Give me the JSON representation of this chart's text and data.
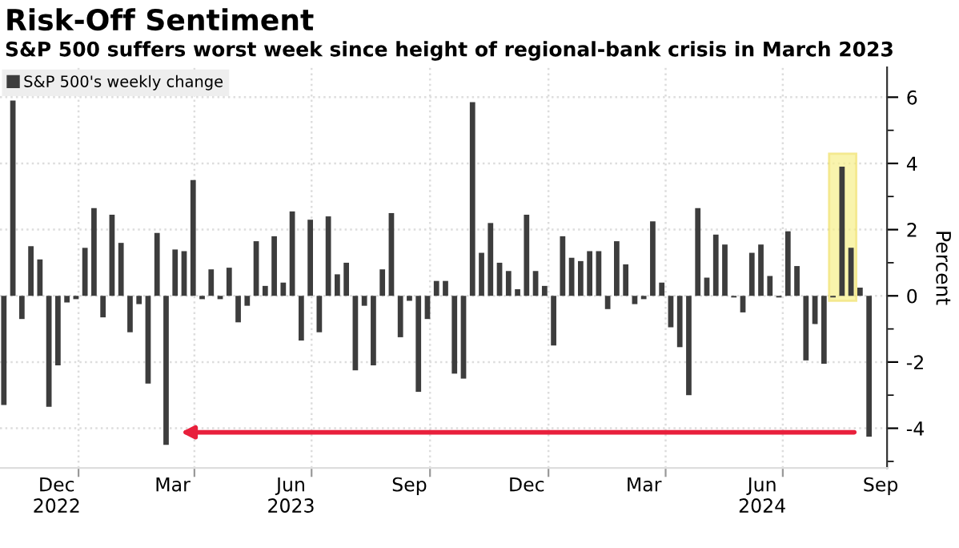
{
  "chart_data": {
    "type": "bar",
    "title": "Risk-Off Sentiment",
    "subtitle": "S&P 500 suffers worst week since height of regional-bank crisis in March 2023",
    "ylabel": "Percent",
    "x": [
      "2022-11-04",
      "2022-11-11",
      "2022-11-18",
      "2022-11-25",
      "2022-12-02",
      "2022-12-09",
      "2022-12-16",
      "2022-12-23",
      "2022-12-30",
      "2023-01-06",
      "2023-01-13",
      "2023-01-20",
      "2023-01-27",
      "2023-02-03",
      "2023-02-10",
      "2023-02-17",
      "2023-02-24",
      "2023-03-03",
      "2023-03-10",
      "2023-03-17",
      "2023-03-24",
      "2023-03-31",
      "2023-04-07",
      "2023-04-14",
      "2023-04-21",
      "2023-04-28",
      "2023-05-05",
      "2023-05-12",
      "2023-05-19",
      "2023-05-26",
      "2023-06-02",
      "2023-06-09",
      "2023-06-16",
      "2023-06-23",
      "2023-06-30",
      "2023-07-07",
      "2023-07-14",
      "2023-07-21",
      "2023-07-28",
      "2023-08-04",
      "2023-08-11",
      "2023-08-18",
      "2023-08-25",
      "2023-09-01",
      "2023-09-08",
      "2023-09-15",
      "2023-09-22",
      "2023-09-29",
      "2023-10-06",
      "2023-10-13",
      "2023-10-20",
      "2023-10-27",
      "2023-11-03",
      "2023-11-10",
      "2023-11-17",
      "2023-11-24",
      "2023-12-01",
      "2023-12-08",
      "2023-12-15",
      "2023-12-22",
      "2023-12-29",
      "2024-01-05",
      "2024-01-12",
      "2024-01-19",
      "2024-01-26",
      "2024-02-02",
      "2024-02-09",
      "2024-02-16",
      "2024-02-23",
      "2024-03-01",
      "2024-03-08",
      "2024-03-15",
      "2024-03-22",
      "2024-03-29",
      "2024-04-05",
      "2024-04-12",
      "2024-04-19",
      "2024-04-26",
      "2024-05-03",
      "2024-05-10",
      "2024-05-17",
      "2024-05-24",
      "2024-05-31",
      "2024-06-07",
      "2024-06-14",
      "2024-06-21",
      "2024-06-28",
      "2024-07-05",
      "2024-07-12",
      "2024-07-19",
      "2024-07-26",
      "2024-08-02",
      "2024-08-09",
      "2024-08-16",
      "2024-08-23",
      "2024-08-30",
      "2024-09-06"
    ],
    "series": [
      {
        "name": "S&P 500's weekly change",
        "color": "#3d3d3d",
        "values": [
          -3.3,
          5.9,
          -0.7,
          1.5,
          1.1,
          -3.35,
          -2.1,
          -0.2,
          -0.1,
          1.45,
          2.65,
          -0.65,
          2.45,
          1.6,
          -1.1,
          -0.25,
          -2.65,
          1.9,
          -4.5,
          1.4,
          1.35,
          3.5,
          -0.1,
          0.8,
          -0.1,
          0.85,
          -0.8,
          -0.3,
          1.65,
          0.3,
          1.8,
          0.4,
          2.55,
          -1.35,
          2.3,
          -1.1,
          2.4,
          0.65,
          1.0,
          -2.25,
          -0.3,
          -2.1,
          0.8,
          2.5,
          -1.25,
          -0.15,
          -2.9,
          -0.7,
          0.45,
          0.45,
          -2.35,
          -2.5,
          5.85,
          1.3,
          2.2,
          1.0,
          0.75,
          0.2,
          2.45,
          0.75,
          0.3,
          -1.5,
          1.8,
          1.15,
          1.05,
          1.35,
          1.35,
          -0.4,
          1.65,
          0.95,
          -0.25,
          -0.1,
          2.25,
          0.4,
          -0.95,
          -1.55,
          -3.0,
          2.65,
          0.55,
          1.85,
          1.55,
          -0.05,
          -0.5,
          1.3,
          1.55,
          0.6,
          -0.05,
          1.95,
          0.9,
          -1.95,
          -0.85,
          -2.05,
          -0.05,
          3.9,
          1.45,
          0.25,
          -4.25
        ]
      }
    ],
    "xlim": [
      "2022-11-01",
      "2024-09-20"
    ],
    "xticks": [
      {
        "value": "2022-12-15",
        "label": "Dec\n2022"
      },
      {
        "value": "2023-01-01",
        "label": null
      },
      {
        "value": "2023-03-15",
        "label": "Mar"
      },
      {
        "value": "2023-04-01",
        "label": null
      },
      {
        "value": "2023-06-15",
        "label": "Jun\n2023"
      },
      {
        "value": "2023-07-01",
        "label": null
      },
      {
        "value": "2023-09-15",
        "label": "Sep"
      },
      {
        "value": "2023-10-01",
        "label": null
      },
      {
        "value": "2023-12-15",
        "label": "Dec"
      },
      {
        "value": "2024-01-01",
        "label": null
      },
      {
        "value": "2024-03-15",
        "label": "Mar"
      },
      {
        "value": "2024-04-01",
        "label": null
      },
      {
        "value": "2024-06-15",
        "label": "Jun\n2024"
      },
      {
        "value": "2024-07-01",
        "label": null
      },
      {
        "value": "2024-09-15",
        "label": "Sep"
      }
    ],
    "ylim": [
      -5.2,
      6.9
    ],
    "yticks": [
      -4,
      {
        "value": -5,
        "label": null
      },
      -2,
      {
        "value": -3,
        "label": null
      },
      0,
      {
        "value": -1,
        "label": null
      },
      2,
      {
        "value": 1,
        "label": null
      },
      4,
      {
        "value": 3,
        "label": null
      },
      6,
      {
        "value": 5,
        "label": null
      }
    ],
    "bands": [
      {
        "axis": "x",
        "from": "2024-08-06",
        "to": "2024-08-27",
        "color": "#f7f08a",
        "label": null
      }
    ],
    "grid": true,
    "legend": "top left"
  }
}
